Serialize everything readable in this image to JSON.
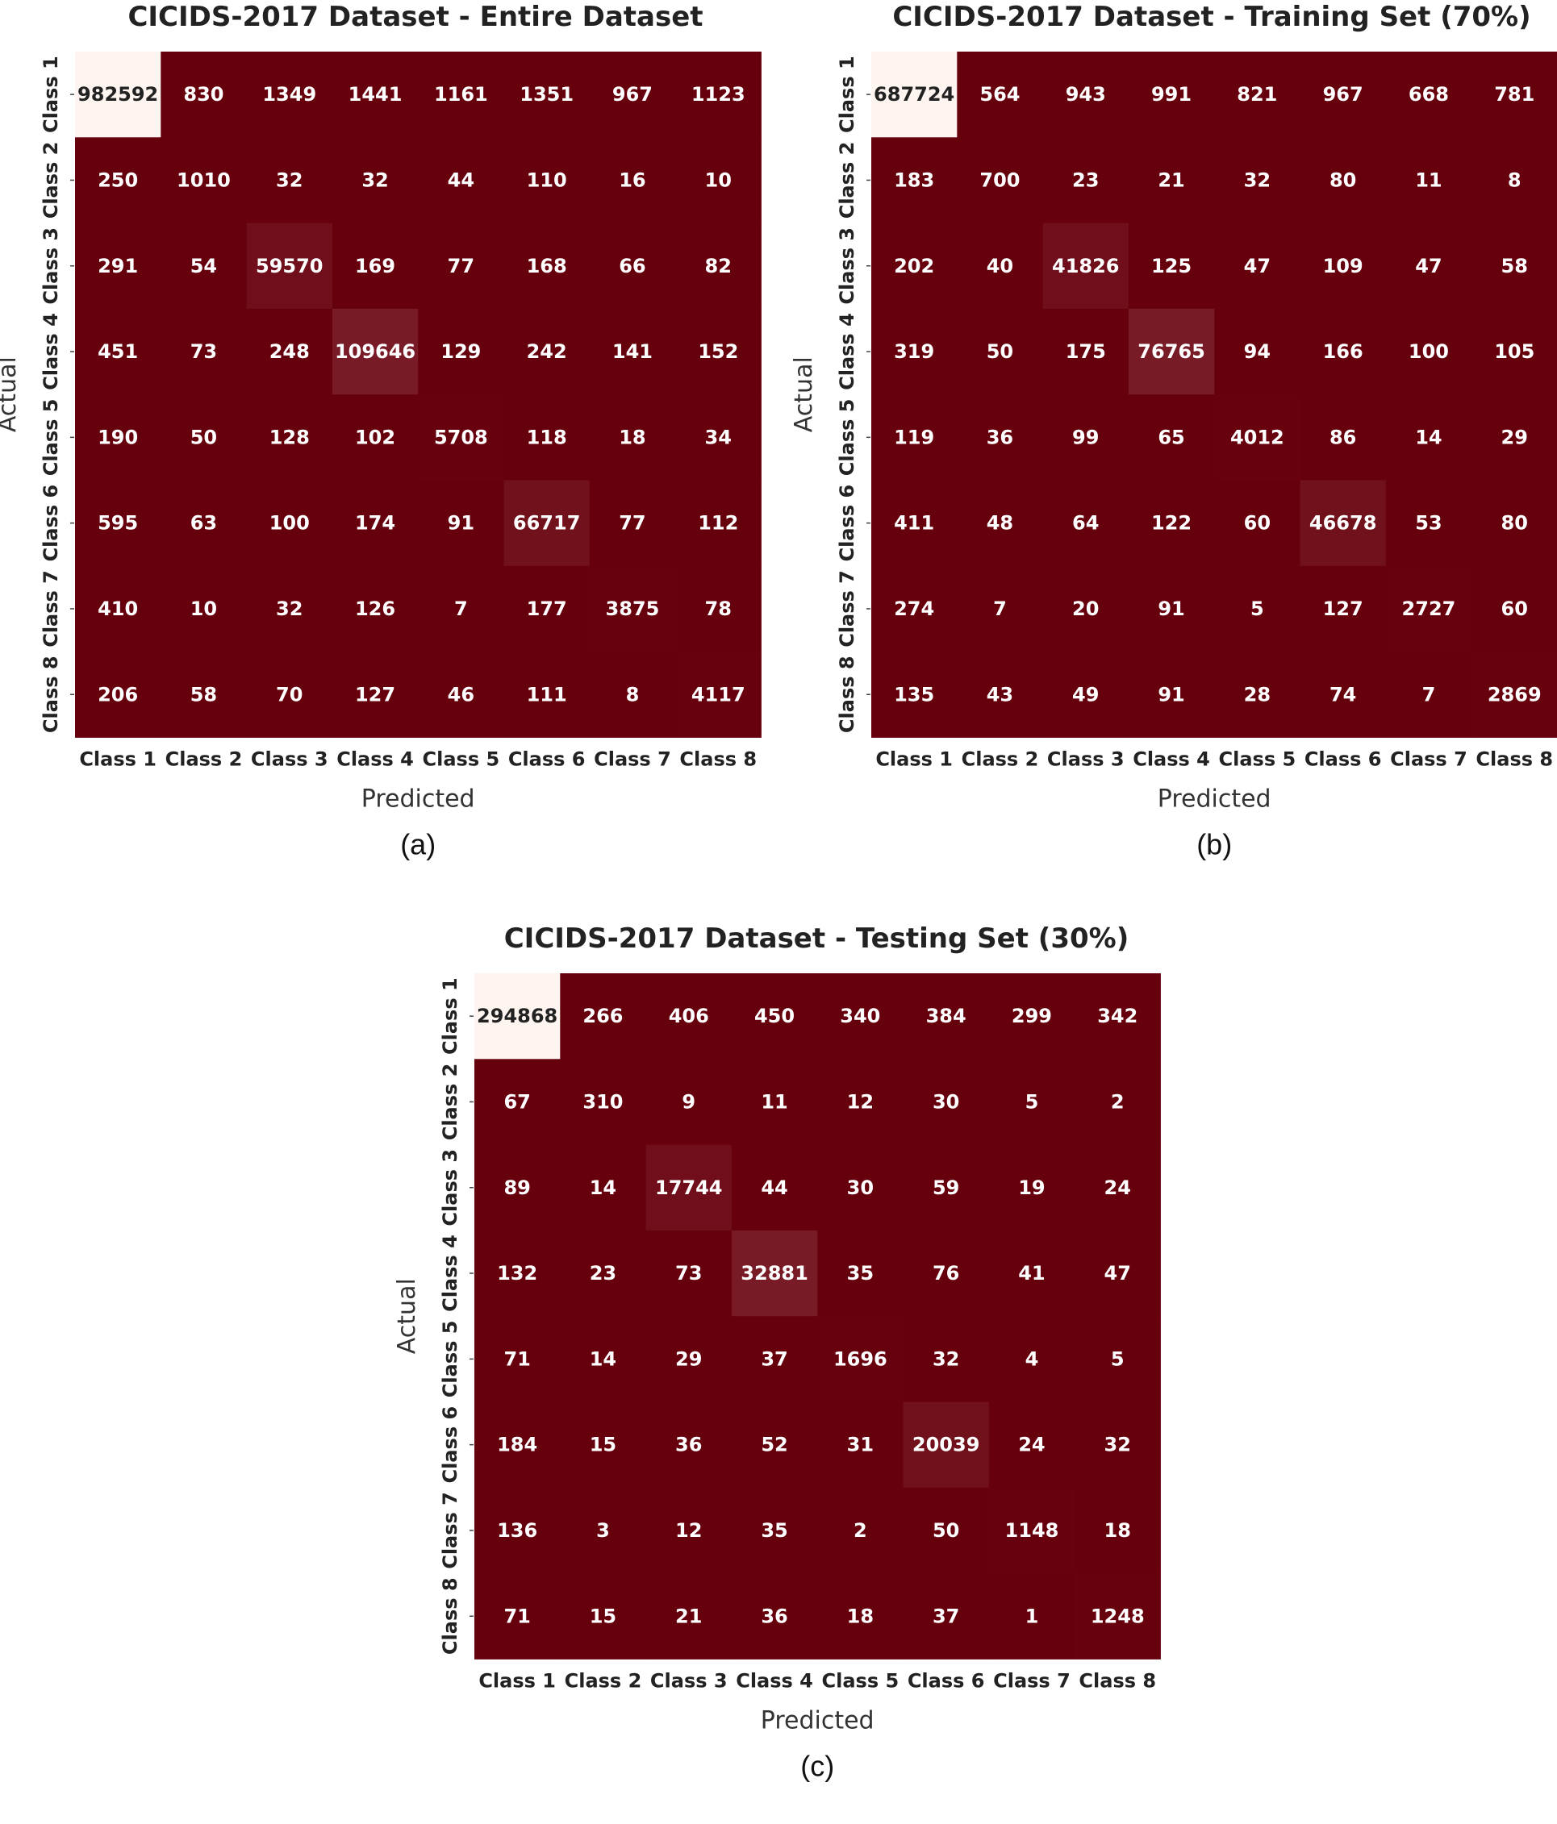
{
  "colors": {
    "low": "#67000d",
    "high": "#fff5f0",
    "text_on_dark": "#ffffff",
    "text_on_light": "#222222"
  },
  "chart_data": [
    {
      "type": "heatmap",
      "title": "CICIDS-2017 Dataset - Entire Dataset",
      "panel_label": "(a)",
      "xlabel": "Predicted",
      "ylabel": "Actual",
      "x_categories": [
        "Class 1",
        "Class 2",
        "Class 3",
        "Class 4",
        "Class 5",
        "Class 6",
        "Class 7",
        "Class 8"
      ],
      "y_categories": [
        "Class 1",
        "Class 2",
        "Class 3",
        "Class 4",
        "Class 5",
        "Class 6",
        "Class 7",
        "Class 8"
      ],
      "values": [
        [
          982592,
          830,
          1349,
          1441,
          1161,
          1351,
          967,
          1123
        ],
        [
          250,
          1010,
          32,
          32,
          44,
          110,
          16,
          10
        ],
        [
          291,
          54,
          59570,
          169,
          77,
          168,
          66,
          82
        ],
        [
          451,
          73,
          248,
          109646,
          129,
          242,
          141,
          152
        ],
        [
          190,
          50,
          128,
          102,
          5708,
          118,
          18,
          34
        ],
        [
          595,
          63,
          100,
          174,
          91,
          66717,
          77,
          112
        ],
        [
          410,
          10,
          32,
          126,
          7,
          177,
          3875,
          78
        ],
        [
          206,
          58,
          70,
          127,
          46,
          111,
          8,
          4117
        ]
      ]
    },
    {
      "type": "heatmap",
      "title": "CICIDS-2017 Dataset - Training Set (70%)",
      "panel_label": "(b)",
      "xlabel": "Predicted",
      "ylabel": "Actual",
      "x_categories": [
        "Class 1",
        "Class 2",
        "Class 3",
        "Class 4",
        "Class 5",
        "Class 6",
        "Class 7",
        "Class 8"
      ],
      "y_categories": [
        "Class 1",
        "Class 2",
        "Class 3",
        "Class 4",
        "Class 5",
        "Class 6",
        "Class 7",
        "Class 8"
      ],
      "values": [
        [
          687724,
          564,
          943,
          991,
          821,
          967,
          668,
          781
        ],
        [
          183,
          700,
          23,
          21,
          32,
          80,
          11,
          8
        ],
        [
          202,
          40,
          41826,
          125,
          47,
          109,
          47,
          58
        ],
        [
          319,
          50,
          175,
          76765,
          94,
          166,
          100,
          105
        ],
        [
          119,
          36,
          99,
          65,
          4012,
          86,
          14,
          29
        ],
        [
          411,
          48,
          64,
          122,
          60,
          46678,
          53,
          80
        ],
        [
          274,
          7,
          20,
          91,
          5,
          127,
          2727,
          60
        ],
        [
          135,
          43,
          49,
          91,
          28,
          74,
          7,
          2869
        ]
      ]
    },
    {
      "type": "heatmap",
      "title": "CICIDS-2017 Dataset - Testing Set (30%)",
      "panel_label": "(c)",
      "xlabel": "Predicted",
      "ylabel": "Actual",
      "x_categories": [
        "Class 1",
        "Class 2",
        "Class 3",
        "Class 4",
        "Class 5",
        "Class 6",
        "Class 7",
        "Class 8"
      ],
      "y_categories": [
        "Class 1",
        "Class 2",
        "Class 3",
        "Class 4",
        "Class 5",
        "Class 6",
        "Class 7",
        "Class 8"
      ],
      "values": [
        [
          294868,
          266,
          406,
          450,
          340,
          384,
          299,
          342
        ],
        [
          67,
          310,
          9,
          11,
          12,
          30,
          5,
          2
        ],
        [
          89,
          14,
          17744,
          44,
          30,
          59,
          19,
          24
        ],
        [
          132,
          23,
          73,
          32881,
          35,
          76,
          41,
          47
        ],
        [
          71,
          14,
          29,
          37,
          1696,
          32,
          4,
          5
        ],
        [
          184,
          15,
          36,
          52,
          31,
          20039,
          24,
          32
        ],
        [
          136,
          3,
          12,
          35,
          2,
          50,
          1148,
          18
        ],
        [
          71,
          15,
          21,
          36,
          18,
          37,
          1,
          1248
        ]
      ]
    }
  ]
}
